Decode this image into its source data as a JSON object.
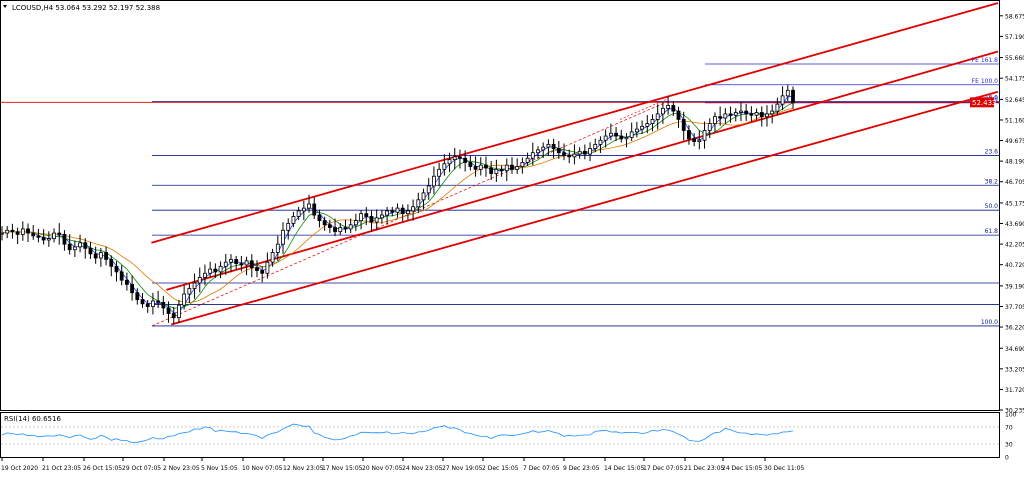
{
  "header": {
    "symbol_line": "LCOUSD,H4  53.064 53.292 52.197 52.388"
  },
  "rsi_panel": {
    "label": "RSI(14) 60.6516",
    "levels": [
      "100",
      "70",
      "30",
      "0"
    ]
  },
  "price_marker": {
    "value": "52.433",
    "color": "#e00000"
  },
  "colors": {
    "candles": "#000000",
    "channel": "#e00000",
    "fibo": "#0b1a8e",
    "fe": "#2a2ad6",
    "rsi": "#1e90ff",
    "ma_fast": "#1e3cff",
    "ma_mid": "#0a8a0a",
    "ma_slow": "#e07a00"
  },
  "chart_data": {
    "type": "candlestick",
    "title": "LCOUSD,H4",
    "ohlc_header": {
      "open": 53.064,
      "high": 53.292,
      "low": 52.197,
      "close": 52.388
    },
    "y_ticks": [
      "58.675",
      "57.190",
      "55.660",
      "54.175",
      "52.645",
      "51.160",
      "49.675",
      "48.190",
      "46.705",
      "45.175",
      "43.690",
      "42.205",
      "40.720",
      "39.190",
      "37.705",
      "36.220",
      "34.690",
      "33.205",
      "31.720",
      "30.235"
    ],
    "ylim": [
      30.235,
      59.6
    ],
    "x_ticks": [
      "19 Oct 2020",
      "21 Oct 23:05",
      "26 Oct 15:05",
      "29 Oct 07:05",
      "2 Nov 23:05",
      "5 Nov 15:05",
      "10 Nov 07:05",
      "12 Nov 23:05",
      "17 Nov 15:05",
      "20 Nov 07:05",
      "24 Nov 23:05",
      "27 Nov 19:05",
      "2 Dec 15:05",
      "7 Dec 07:05",
      "9 Dec 23:05",
      "14 Dec 15:05",
      "17 Dec 07:05",
      "21 Dec 23:05",
      "24 Dec 15:05",
      "30 Dec 11:05"
    ],
    "fibonacci_retracement": [
      {
        "label": "0.0",
        "price": 52.5
      },
      {
        "label": "23.6",
        "price": 48.6
      },
      {
        "label": "38.2",
        "price": 46.45
      },
      {
        "label": "50.0",
        "price": 44.65
      },
      {
        "label": "61.8",
        "price": 42.85
      },
      {
        "label": "100.0",
        "price": 36.3
      }
    ],
    "fibonacci_expansion": [
      {
        "label": "FE 61.8",
        "price": 52.4
      },
      {
        "label": "FE 100.0",
        "price": 53.7
      },
      {
        "label": "FE 161.8",
        "price": 55.2
      }
    ],
    "extra_levels": [
      39.4,
      37.85
    ],
    "current_price": 52.433,
    "close_series": [
      43.0,
      43.2,
      43.1,
      42.9,
      43.3,
      43.0,
      42.8,
      42.7,
      42.5,
      42.6,
      43.0,
      42.9,
      42.2,
      41.8,
      42.0,
      42.3,
      41.9,
      41.5,
      41.2,
      41.6,
      41.1,
      40.6,
      40.2,
      39.6,
      39.3,
      38.7,
      38.2,
      37.9,
      37.7,
      38.1,
      38.0,
      37.6,
      37.2,
      36.9,
      37.8,
      38.6,
      39.0,
      39.4,
      39.8,
      40.1,
      40.4,
      40.2,
      40.6,
      40.9,
      41.1,
      40.8,
      40.7,
      41.0,
      40.5,
      40.3,
      40.1,
      40.9,
      41.6,
      42.2,
      43.2,
      43.7,
      44.2,
      44.6,
      44.8,
      45.1,
      44.3,
      43.9,
      43.6,
      43.4,
      43.1,
      43.4,
      43.3,
      43.6,
      43.9,
      44.4,
      44.2,
      43.8,
      44.1,
      44.3,
      44.6,
      44.5,
      44.8,
      44.4,
      44.6,
      44.9,
      45.4,
      45.9,
      46.4,
      47.1,
      47.6,
      48.0,
      48.3,
      48.5,
      48.4,
      48.1,
      47.8,
      47.6,
      47.9,
      47.7,
      47.3,
      47.6,
      47.5,
      47.9,
      47.6,
      47.8,
      48.1,
      48.4,
      48.8,
      49.0,
      49.2,
      49.4,
      49.1,
      48.8,
      48.6,
      48.5,
      48.7,
      48.9,
      48.7,
      49.1,
      49.4,
      49.7,
      50.0,
      50.2,
      50.0,
      49.8,
      49.9,
      50.3,
      50.5,
      50.7,
      50.9,
      51.2,
      51.6,
      52.0,
      52.2,
      51.8,
      51.2,
      50.4,
      49.8,
      49.6,
      49.7,
      50.4,
      50.9,
      51.4,
      51.3,
      51.6,
      51.5,
      51.7,
      51.8,
      51.6,
      51.5,
      51.7,
      51.4,
      51.6,
      51.8,
      52.3,
      52.9,
      53.3,
      52.4
    ],
    "channel_lines": [
      {
        "name": "upper",
        "from": {
          "x_index": 30,
          "y": 42.3
        },
        "to": {
          "x_index": 200,
          "y": 59.6
        }
      },
      {
        "name": "middle",
        "from": {
          "x_index": 33,
          "y": 38.9
        },
        "to": {
          "x_index": 200,
          "y": 56.1
        }
      },
      {
        "name": "lower",
        "from": {
          "x_index": 34,
          "y": 36.4
        },
        "to": {
          "x_index": 200,
          "y": 53.2
        }
      }
    ],
    "rsi": {
      "name": "RSI(14)",
      "last": 60.6516,
      "levels": [
        70,
        30
      ],
      "range": [
        0,
        100
      ]
    }
  }
}
